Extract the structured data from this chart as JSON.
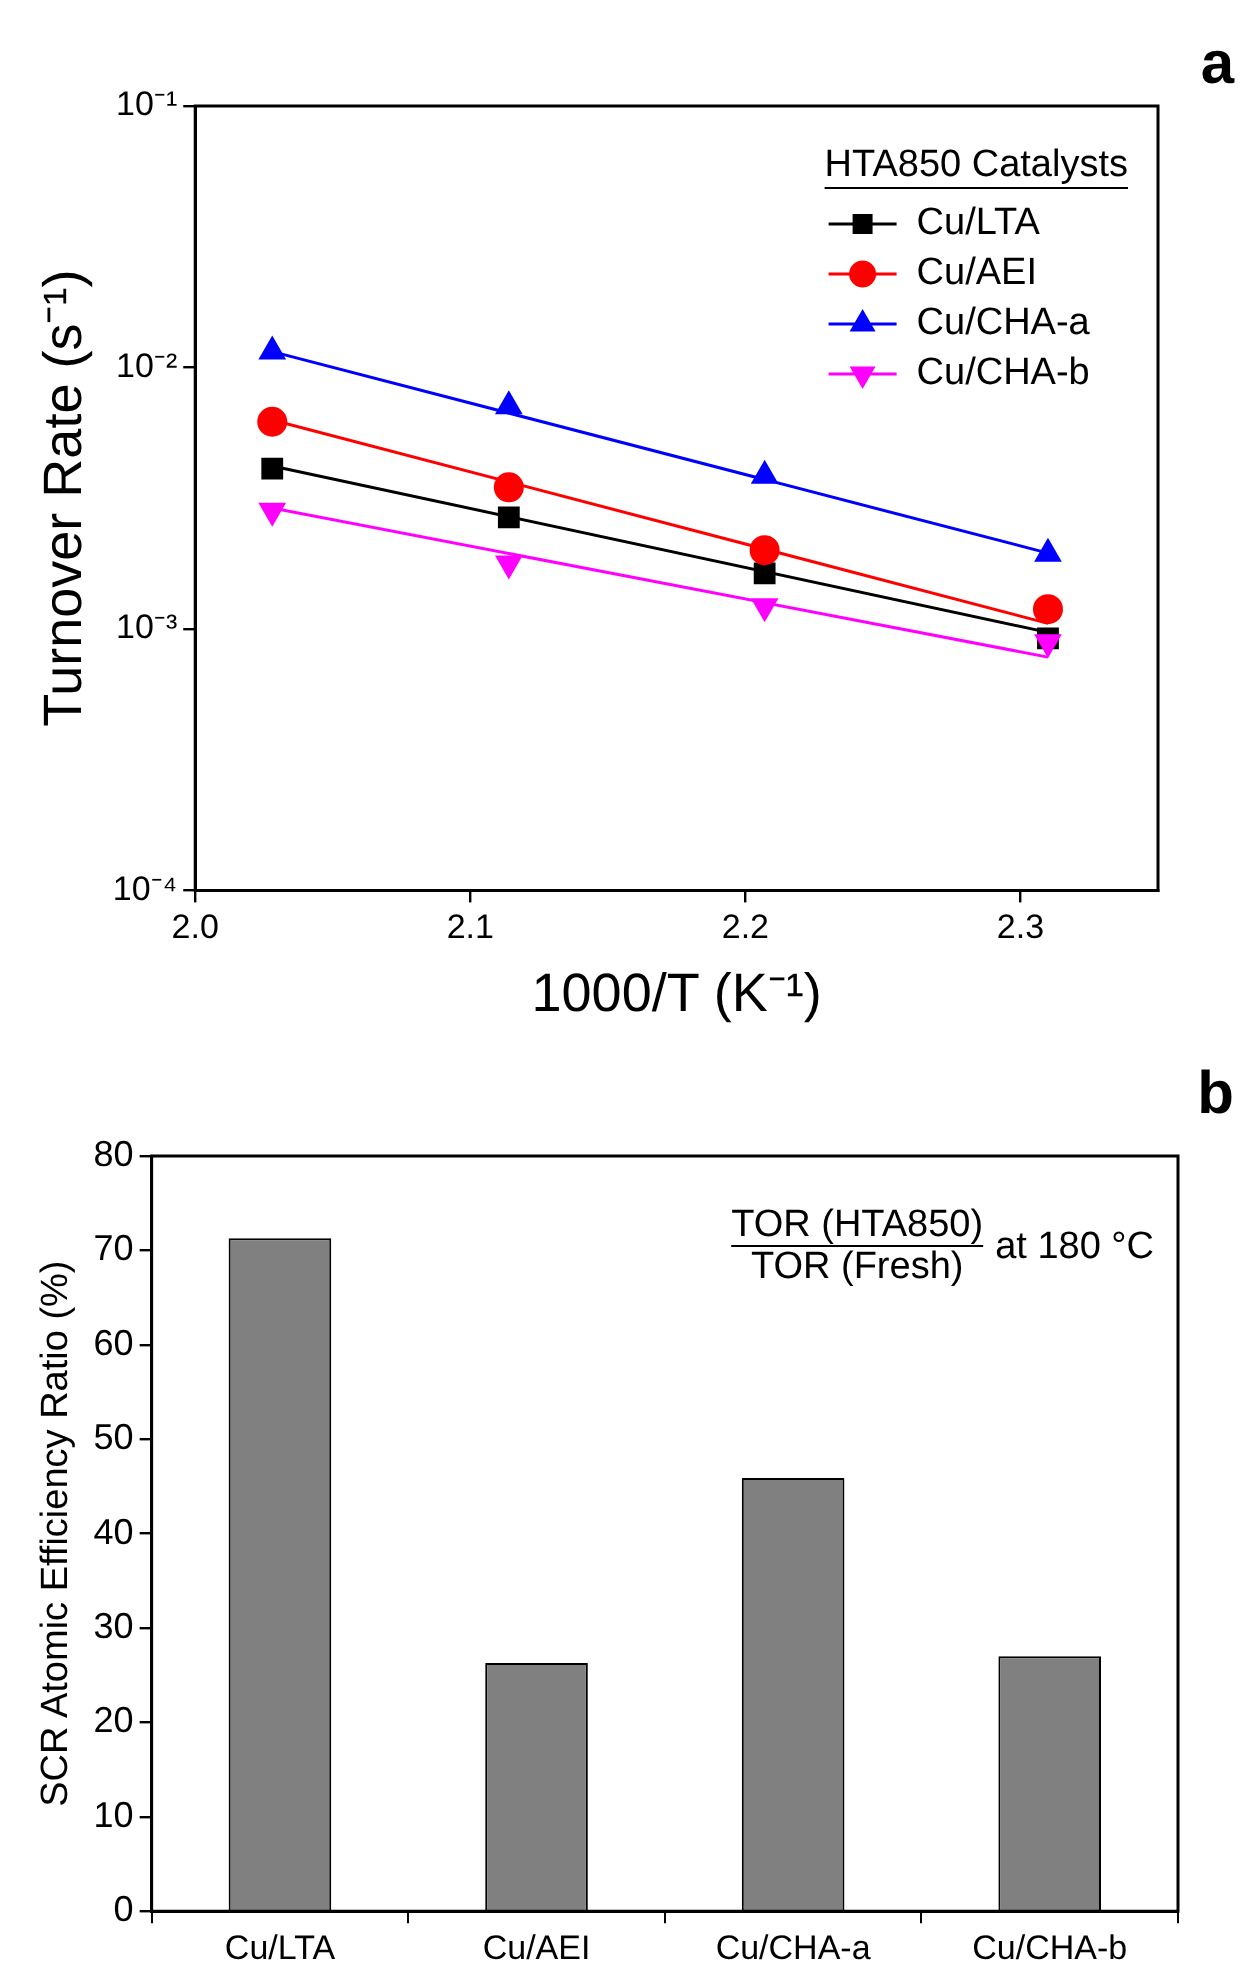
{
  "chart_data": [
    {
      "type": "scatter",
      "xlabel": "1000/T (K⁻¹)",
      "ylabel": "Turnover Rate (s⁻¹)",
      "legend_title": "HTA850 Catalysts",
      "legend": "top right",
      "log": "y",
      "grid": false,
      "xlim": [
        2.0,
        2.35
      ],
      "xticks": [
        {
          "value": 2,
          "label": "2.0"
        },
        2.1,
        2.2,
        2.3
      ],
      "ylim": [
        0.0001,
        0.1
      ],
      "yticks": [
        {
          "value": 0.0001,
          "label": "10⁻⁴"
        },
        {
          "value": 0.001,
          "label": "10⁻³"
        },
        {
          "value": 0.01,
          "label": "10⁻²"
        },
        {
          "value": 0.1,
          "label": "10⁻¹"
        }
      ],
      "annotations": [
        "a"
      ],
      "series": [
        {
          "name": "Cu/LTA",
          "color": "#000000",
          "marker": "square",
          "x": [
            2.028,
            2.114,
            2.207,
            2.31
          ],
          "values": [
            0.0041,
            0.00267,
            0.00163,
            0.00092
          ]
        },
        {
          "name": "Cu/AEI",
          "color": "#ff0000",
          "marker": "circle",
          "x": [
            2.028,
            2.114,
            2.207,
            2.31
          ],
          "values": [
            0.0062,
            0.00348,
            0.002,
            0.00119
          ]
        },
        {
          "name": "Cu/CHA-a",
          "color": "#0000ff",
          "marker": "triangle",
          "x": [
            2.028,
            2.114,
            2.207,
            2.31
          ],
          "values": [
            0.0115,
            0.0071,
            0.00385,
            0.00194
          ]
        },
        {
          "name": "Cu/CHA-b",
          "color": "#ff00ff",
          "marker": "triangle_down",
          "x": [
            2.028,
            2.114,
            2.207,
            2.31
          ],
          "values": [
            0.00283,
            0.00178,
            0.00122,
            0.00089
          ]
        },
        {
          "type": "line",
          "color": "#000000",
          "marker": "none",
          "x": [
            2.028,
            2.31
          ],
          "values": [
            0.0042,
            0.00097
          ]
        },
        {
          "type": "line",
          "color": "#ff0000",
          "marker": "none",
          "x": [
            2.028,
            2.31
          ],
          "values": [
            0.0063,
            0.00105
          ]
        },
        {
          "type": "line",
          "color": "#0000ff",
          "marker": "none",
          "x": [
            2.028,
            2.31
          ],
          "values": [
            0.0115,
            0.00195
          ]
        },
        {
          "type": "line",
          "color": "#ff00ff",
          "marker": "none",
          "x": [
            2.028,
            2.31
          ],
          "values": [
            0.0029,
            0.00078
          ]
        }
      ]
    },
    {
      "type": "bar",
      "ylabel": "SCR Atomic Efficiency Ratio (%)",
      "categories": [
        "Cu/LTA",
        "Cu/AEI",
        "Cu/CHA-a",
        "Cu/CHA-b"
      ],
      "values": [
        71.3,
        26.3,
        45.9,
        27.0
      ],
      "color": "#808080",
      "grid": false,
      "ylim": [
        0,
        80
      ],
      "yticks": [
        0,
        10,
        20,
        30,
        40,
        50,
        60,
        70,
        80
      ],
      "annotations": [
        "b",
        "TOR (HTA850)",
        "TOR (Fresh)",
        "at 180 °C"
      ]
    }
  ]
}
